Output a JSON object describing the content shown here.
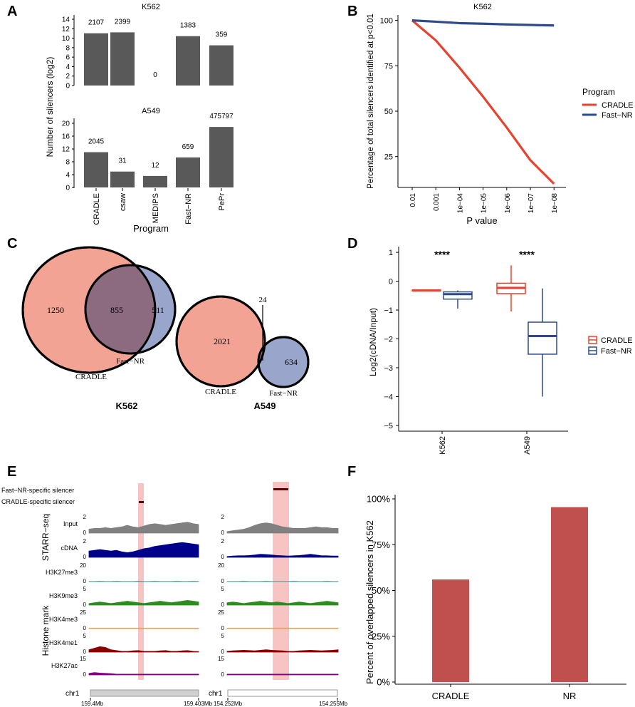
{
  "panel_labels": {
    "a": "A",
    "b": "B",
    "c": "C",
    "d": "D",
    "e": "E",
    "f": "F"
  },
  "colors": {
    "bar": "#595959",
    "cradle": "#e5432f",
    "fastnr": "#2e4a8c",
    "venn_left": "#f2a394",
    "venn_right": "#9aa5cb",
    "venn_overlap": "#8c6b80",
    "barF": "#c0504d",
    "highlight": "#f7b8b8"
  },
  "chart_data": [
    {
      "id": "A",
      "type": "bar",
      "title_top": "K562",
      "title_bottom": "A549",
      "ylabel": "Number of silencers (log2)",
      "xlabel": "Program",
      "categories": [
        "CRADLE",
        "csaw",
        "MEDIPS",
        "Fast−NR",
        "PePr"
      ],
      "top": {
        "ylim": [
          0,
          14
        ],
        "ticks": [
          "0",
          "2",
          "4",
          "6",
          "8",
          "10",
          "12",
          "14"
        ],
        "tick_values": [
          0,
          2,
          4,
          6,
          8,
          10,
          12,
          14
        ],
        "values": [
          11.04,
          11.23,
          0,
          10.43,
          8.49
        ],
        "labels": [
          "2107",
          "2399",
          "0",
          "1383",
          "359"
        ]
      },
      "bottom": {
        "ylim": [
          0,
          20
        ],
        "ticks": [
          "0",
          "4",
          "8",
          "12",
          "16",
          "20"
        ],
        "tick_values": [
          0,
          4,
          8,
          12,
          16,
          20
        ],
        "values": [
          11.0,
          4.95,
          3.58,
          9.36,
          18.86
        ],
        "labels": [
          "2045",
          "31",
          "12",
          "659",
          "475797"
        ]
      }
    },
    {
      "id": "B",
      "type": "line",
      "title": "K562",
      "xlabel": "P value",
      "ylabel": "Percentage of total silencers identified at p<0.01",
      "x": [
        "0.01",
        "0.001",
        "1e−04",
        "1e−05",
        "1e−06",
        "1e−07",
        "1e−08"
      ],
      "yticks": [
        "25",
        "50",
        "75",
        "100"
      ],
      "ytick_values": [
        25,
        50,
        75,
        100
      ],
      "ylim": [
        8,
        103
      ],
      "legend_title": "Program",
      "series": [
        {
          "name": "CRADLE",
          "values": [
            100,
            89,
            74,
            58,
            41,
            23,
            10
          ]
        },
        {
          "name": "Fast−NR",
          "values": [
            100,
            99.3,
            98.5,
            98.2,
            97.8,
            97.5,
            97.2
          ]
        }
      ]
    },
    {
      "id": "C",
      "type": "venn",
      "k562": {
        "left": "1250",
        "overlap": "855",
        "right": "511",
        "left_label": "CRADLE",
        "right_label": "Fast−NR",
        "title": "K562"
      },
      "a549": {
        "left": "2021",
        "overlap": "24",
        "right": "634",
        "left_label": "CRADLE",
        "right_label": "Fast−NR",
        "title": "A549"
      }
    },
    {
      "id": "D",
      "type": "box",
      "ylabel": "Log2(cDNA/Input)",
      "categories": [
        "K562",
        "A549"
      ],
      "yticks": [
        "−5",
        "−4",
        "−3",
        "−2",
        "−1",
        "0",
        "1"
      ],
      "ytick_values": [
        -5,
        -4,
        -3,
        -2,
        -1,
        0,
        1
      ],
      "ylim": [
        -5.2,
        1.2
      ],
      "significance": [
        "****",
        "****"
      ],
      "legend": [
        "CRADLE",
        "Fast−NR"
      ],
      "boxes": [
        {
          "group": "K562",
          "series": "CRADLE",
          "min": -0.33,
          "q1": -0.33,
          "median": -0.32,
          "q3": -0.31,
          "max": -0.31
        },
        {
          "group": "K562",
          "series": "Fast−NR",
          "min": -0.95,
          "q1": -0.62,
          "median": -0.45,
          "q3": -0.37,
          "max": -0.32
        },
        {
          "group": "A549",
          "series": "CRADLE",
          "min": -1.05,
          "q1": -0.43,
          "median": -0.23,
          "q3": -0.07,
          "max": 0.55
        },
        {
          "group": "A549",
          "series": "Fast−NR",
          "min": -4.0,
          "q1": -2.53,
          "median": -1.9,
          "q3": -1.42,
          "max": -0.25
        }
      ]
    },
    {
      "id": "E",
      "type": "tracks",
      "top_labels": [
        "Fast−NR-specific silencer",
        "CRADLE-specific silencer"
      ],
      "group_labels": [
        "STARR−seq",
        "Histone mark"
      ],
      "tracks": [
        {
          "name": "Input",
          "max": "2",
          "zero": "0",
          "color": "#808080"
        },
        {
          "name": "cDNA",
          "max": "2",
          "zero": "0",
          "color": "#00008b"
        },
        {
          "name": "H3K27me3",
          "max": "20",
          "zero": "0",
          "color": "#20b2aa"
        },
        {
          "name": "H3K9me3",
          "max": "5",
          "zero": "0",
          "color": "#2e8b22"
        },
        {
          "name": "H3K4me3",
          "max": "25",
          "zero": "0",
          "color": "#f0a030"
        },
        {
          "name": "H3K4me1",
          "max": "5",
          "zero": "0",
          "color": "#8b0000"
        },
        {
          "name": "H3K27ac",
          "max": "15",
          "zero": "0",
          "color": "#800080"
        }
      ],
      "chrom": "chr1",
      "left_coords": [
        "159.4Mb",
        "159.403Mb"
      ],
      "right_coords": [
        "154.252Mb",
        "154.255Mb"
      ]
    },
    {
      "id": "F",
      "type": "bar",
      "ylabel": "Percent of overlapped silencers in K562",
      "categories": [
        "CRADLE",
        "NR"
      ],
      "values": [
        56,
        95.5
      ],
      "yticks": [
        "0%",
        "25%",
        "50%",
        "75%",
        "100%"
      ],
      "ytick_values": [
        0,
        25,
        50,
        75,
        100
      ],
      "ylim": [
        0,
        100
      ]
    }
  ]
}
